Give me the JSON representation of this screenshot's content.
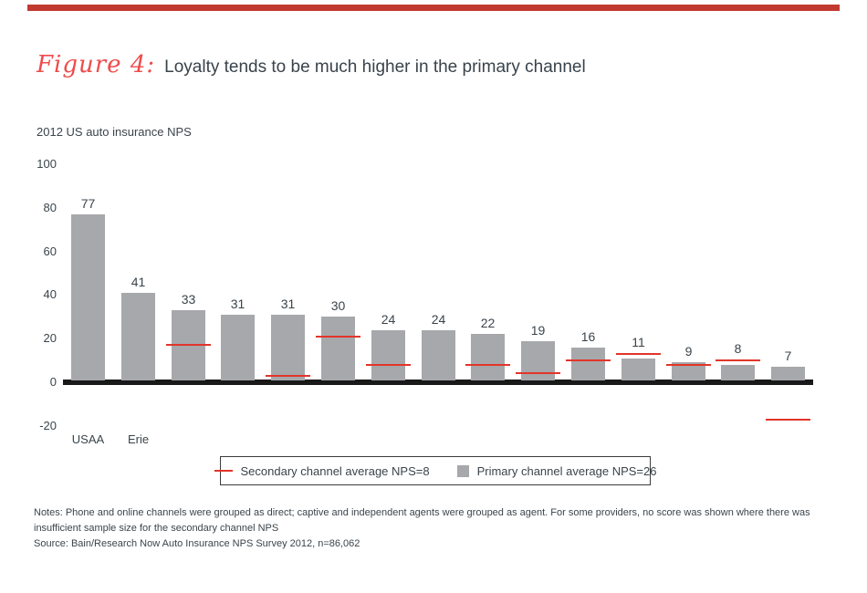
{
  "page": {
    "accent_color": "#c13a30",
    "script_red": "#ee4c4b",
    "dark_text": "#3a444b"
  },
  "header": {
    "figure_label": "Figure 4:",
    "title": "Loyalty tends to be much higher in the primary channel"
  },
  "chart_data": {
    "type": "bar",
    "title": "2012 US auto insurance NPS",
    "xlabel": "",
    "ylabel": "NPS",
    "ylim": [
      -20,
      100
    ],
    "yticks": [
      100,
      80,
      60,
      40,
      20,
      0,
      -20
    ],
    "grid": false,
    "legend_position": "bottom",
    "bar_color": "#a6a8ab",
    "secondary_line_color": "#e2352a",
    "categories": [
      "USAA",
      "Erie",
      "",
      "",
      "",
      "",
      "",
      "",
      "",
      "",
      "",
      "",
      "",
      "",
      ""
    ],
    "series": [
      {
        "name": "Primary channel NPS",
        "values": [
          77,
          41,
          33,
          31,
          31,
          30,
          24,
          24,
          22,
          19,
          16,
          11,
          9,
          8,
          7
        ]
      },
      {
        "name": "Secondary channel NPS",
        "values": [
          null,
          null,
          17,
          null,
          3,
          21,
          8,
          null,
          8,
          4,
          10,
          13,
          8,
          10,
          -17
        ]
      }
    ]
  },
  "legend": {
    "secondary_label": "Secondary channel average NPS=8",
    "primary_label": "Primary channel average NPS=26"
  },
  "notes": {
    "line1": "Notes: Phone and online channels were grouped as direct; captive and independent agents were grouped as agent. For some providers, no score was shown where there was",
    "line2": "insufficient sample size for the secondary channel NPS",
    "source": "Source: Bain/Research Now Auto Insurance NPS Survey 2012, n=86,062"
  }
}
